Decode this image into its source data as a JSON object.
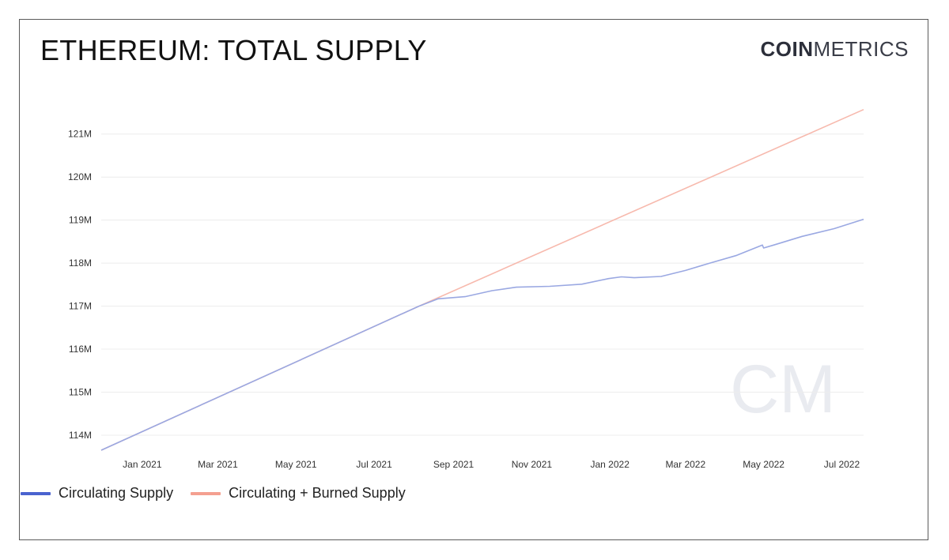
{
  "title": "ETHEREUM: TOTAL SUPPLY",
  "logo": {
    "bold": "COIN",
    "light": "METRICS"
  },
  "watermark": "CM",
  "colors": {
    "circulating": "#4a63cf",
    "circulating_line": "#9aa8e2",
    "burned": "#f4a090",
    "burned_line": "#f7b9ad",
    "grid": "#ececec",
    "watermark": "#e9ebf0"
  },
  "chart_data": {
    "type": "line",
    "title": "ETHEREUM: TOTAL SUPPLY",
    "xlabel": "",
    "ylabel": "",
    "x_range": [
      "2020-11-30",
      "2022-07-18"
    ],
    "ylim": [
      113650000,
      121950000
    ],
    "grid": true,
    "legend_position": "bottom-left",
    "x_ticks": [
      {
        "date": "2021-01-01",
        "label": "Jan 2021"
      },
      {
        "date": "2021-03-01",
        "label": "Mar 2021"
      },
      {
        "date": "2021-05-01",
        "label": "May 2021"
      },
      {
        "date": "2021-07-01",
        "label": "Jul 2021"
      },
      {
        "date": "2021-09-01",
        "label": "Sep 2021"
      },
      {
        "date": "2021-11-01",
        "label": "Nov 2021"
      },
      {
        "date": "2022-01-01",
        "label": "Jan 2022"
      },
      {
        "date": "2022-03-01",
        "label": "Mar 2022"
      },
      {
        "date": "2022-05-01",
        "label": "May 2022"
      },
      {
        "date": "2022-07-01",
        "label": "Jul 2022"
      }
    ],
    "y_ticks": [
      {
        "value": 114000000,
        "label": "114M"
      },
      {
        "value": 115000000,
        "label": "115M"
      },
      {
        "value": 116000000,
        "label": "116M"
      },
      {
        "value": 117000000,
        "label": "117M"
      },
      {
        "value": 118000000,
        "label": "118M"
      },
      {
        "value": 119000000,
        "label": "119M"
      },
      {
        "value": 120000000,
        "label": "120M"
      },
      {
        "value": 121000000,
        "label": "121M"
      }
    ],
    "series": [
      {
        "name": "Circulating Supply",
        "color": "#4a63cf",
        "points": [
          [
            "2020-11-30",
            113650000
          ],
          [
            "2021-08-05",
            117000000
          ],
          [
            "2021-08-20",
            117170000
          ],
          [
            "2021-09-10",
            117220000
          ],
          [
            "2021-10-01",
            117360000
          ],
          [
            "2021-10-20",
            117440000
          ],
          [
            "2021-11-15",
            117460000
          ],
          [
            "2021-12-10",
            117510000
          ],
          [
            "2021-12-31",
            117640000
          ],
          [
            "2022-01-10",
            117680000
          ],
          [
            "2022-01-20",
            117660000
          ],
          [
            "2022-02-10",
            117690000
          ],
          [
            "2022-03-01",
            117830000
          ],
          [
            "2022-03-20",
            118000000
          ],
          [
            "2022-04-10",
            118180000
          ],
          [
            "2022-04-30",
            118420000
          ],
          [
            "2022-05-01",
            118350000
          ],
          [
            "2022-05-10",
            118430000
          ],
          [
            "2022-05-31",
            118620000
          ],
          [
            "2022-06-25",
            118800000
          ],
          [
            "2022-07-18",
            119020000
          ]
        ]
      },
      {
        "name": "Circulating + Burned Supply",
        "color": "#f4a090",
        "points": [
          [
            "2020-11-30",
            113650000
          ],
          [
            "2021-08-05",
            117000000
          ],
          [
            "2022-07-18",
            121570000
          ]
        ]
      }
    ]
  }
}
